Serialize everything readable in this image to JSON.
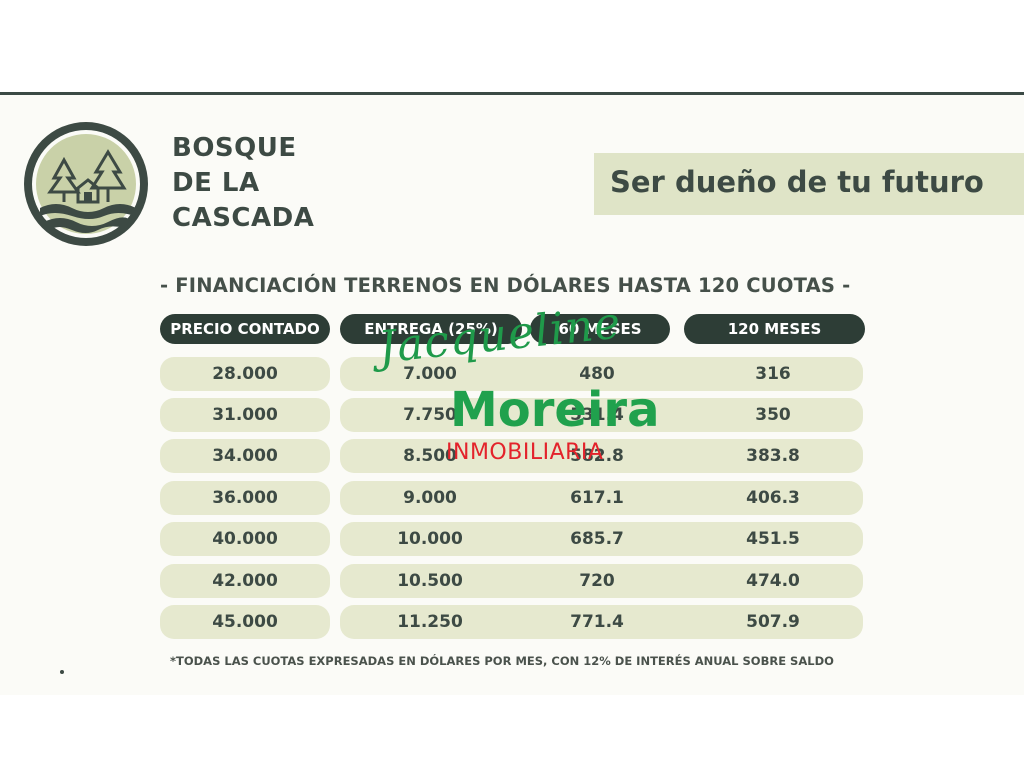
{
  "brand": {
    "line1": "BOSQUE",
    "line2": "DE LA",
    "line3": "CASCADA"
  },
  "tagline": "Ser dueño de tu futuro",
  "heading": "- FINANCIACIÓN TERRENOS EN DÓLARES HASTA 120 CUOTAS -",
  "table": {
    "headers": [
      "PRECIO CONTADO",
      "ENTREGA (25%)",
      "60 MESES",
      "120 MESES"
    ],
    "rows": [
      [
        "28.000",
        "7.000",
        "480",
        "316"
      ],
      [
        "31.000",
        "7.750",
        "531.4",
        "350"
      ],
      [
        "34.000",
        "8.500",
        "582.8",
        "383.8"
      ],
      [
        "36.000",
        "9.000",
        "617.1",
        "406.3"
      ],
      [
        "40.000",
        "10.000",
        "685.7",
        "451.5"
      ],
      [
        "42.000",
        "10.500",
        "720",
        "474.0"
      ],
      [
        "45.000",
        "11.250",
        "771.4",
        "507.9"
      ]
    ]
  },
  "footnote": "*TODAS LAS CUOTAS EXPRESADAS EN DÓLARES POR MES, CON 12% DE INTERÉS ANUAL SOBRE SALDO",
  "watermark": {
    "script": "Jacqueline",
    "name": "Moreira",
    "sub": "INMOBILIARIA"
  },
  "colors": {
    "dark_green": "#2d3d36",
    "pale_green": "#e6e9cf",
    "watermark_green": "#20a14d",
    "watermark_red": "#e3232b"
  }
}
